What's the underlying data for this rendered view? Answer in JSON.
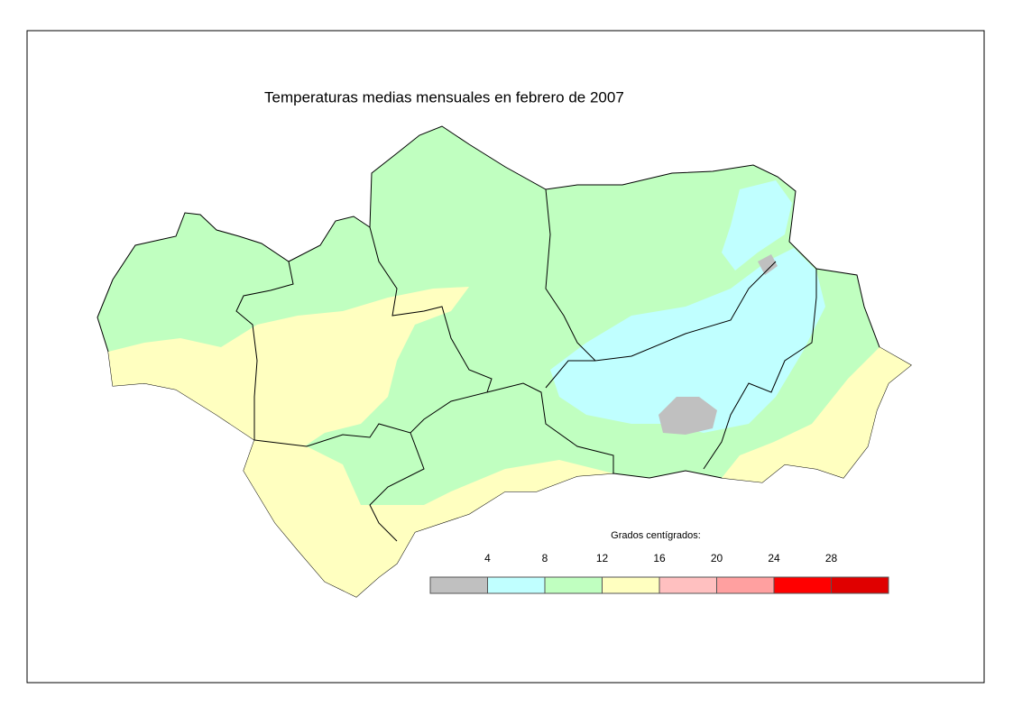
{
  "title": "Temperaturas medias mensuales en febrero de 2007",
  "legend": {
    "title": "Grados centígrados:",
    "ticks": [
      4,
      8,
      12,
      16,
      20,
      24,
      28
    ],
    "colors": [
      "#c0c0c0",
      "#c0ffff",
      "#c0ffc0",
      "#ffffc0",
      "#ffc0c0",
      "#ffa0a0",
      "#ff0000",
      "#e00000"
    ]
  }
}
